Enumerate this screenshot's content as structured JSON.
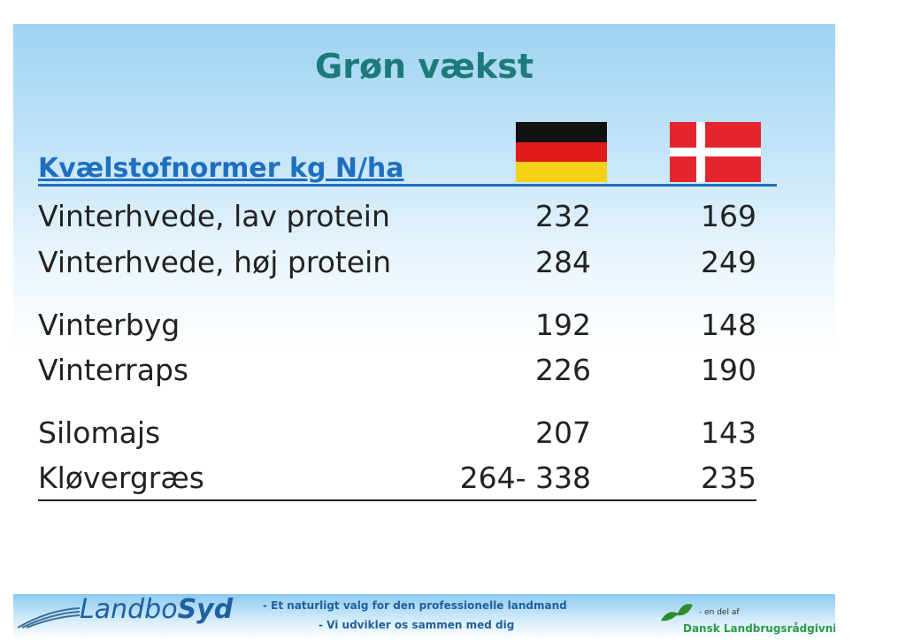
{
  "header": {
    "title": "Grøn vækst"
  },
  "table": {
    "heading": "Kvælstofnormer kg N/ha",
    "rows": [
      [
        "Vinterhvede, lav protein",
        232,
        169
      ],
      [
        "Vinterhvede, høj protein",
        284,
        249
      ],
      [
        "Vinterbyg",
        192,
        148
      ],
      [
        "Vinterraps",
        226,
        190
      ],
      [
        "Silomajs",
        207,
        143
      ],
      [
        "Kløvergræs",
        "264- 338",
        235
      ]
    ]
  },
  "footer": {
    "logo_a": "Landbo",
    "logo_b": "Syd",
    "tagline_1": "- Et naturligt valg for den professionelle landmand",
    "tagline_2": "- Vi udvikler os sammen med dig",
    "partner_note": "- en del af",
    "partner": "Dansk Landbrugsrådgivning"
  }
}
